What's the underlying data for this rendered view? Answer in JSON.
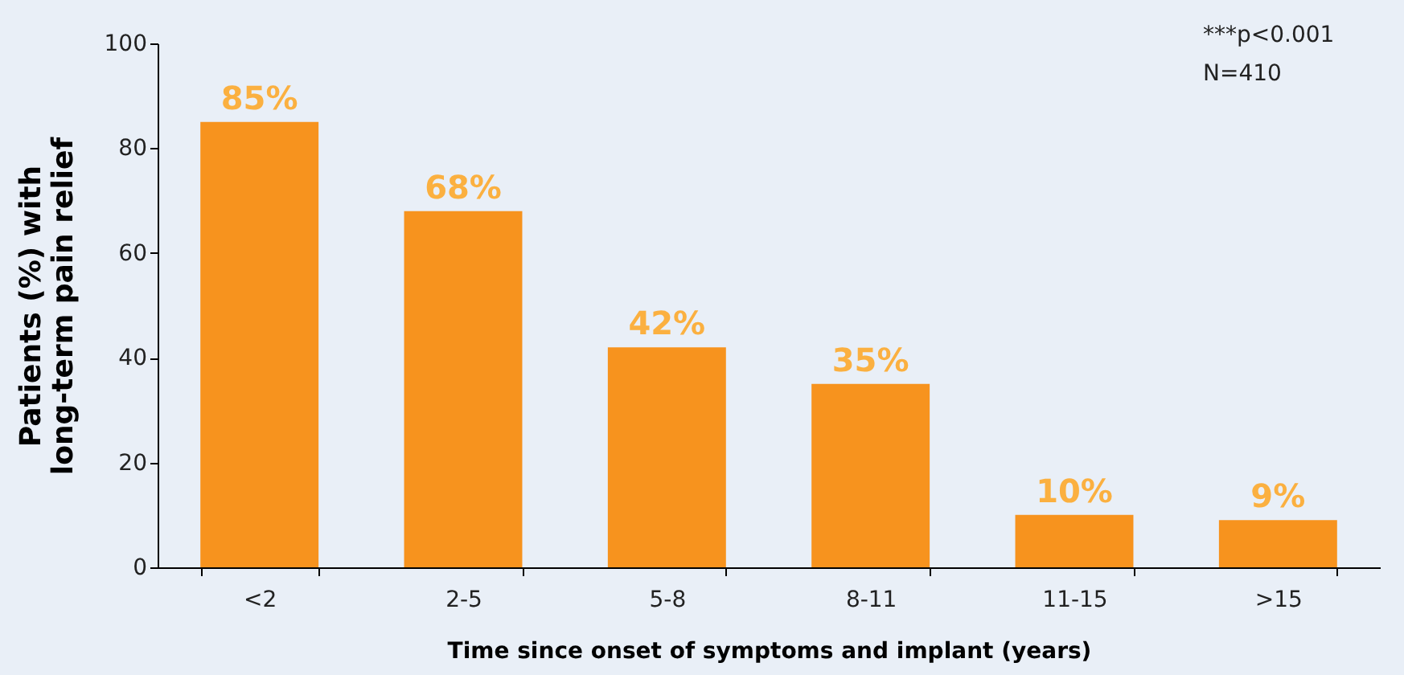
{
  "chart_data": {
    "type": "bar",
    "xlabel": "Time since onset of symptoms and implant (years)",
    "ylabel": "Patients (%) with\nlong-term pain relief",
    "categories": [
      "<2",
      "2-5",
      "5-8",
      "8-11",
      "11-15",
      ">15"
    ],
    "values": [
      85,
      68,
      42,
      35,
      10,
      9
    ],
    "value_labels": [
      "85%",
      "68%",
      "42%",
      "35%",
      "10%",
      "9%"
    ],
    "color": "#f7931e",
    "ylim": [
      0,
      100
    ],
    "yticks": [
      0,
      20,
      40,
      60,
      80,
      100
    ],
    "grid": false,
    "annotations": [
      "***p<0.001",
      "N=410"
    ]
  }
}
